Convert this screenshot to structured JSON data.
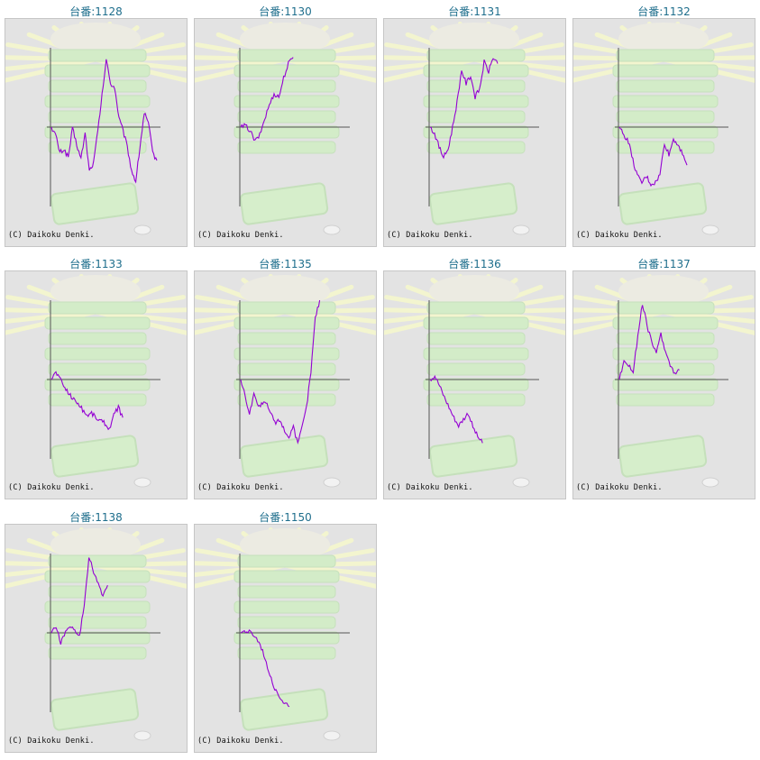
{
  "copyright": "(C) Daikoku Denki.",
  "colors": {
    "title": "#1e6e8c",
    "line": "#9400d3",
    "axis": "#555555",
    "panel_bg": "#e3e3e3",
    "decor_green": "#d3ecc8",
    "decor_rays": "#f3f5cf"
  },
  "chart_data": [
    {
      "type": "line",
      "title": "台番:1128",
      "series": [
        {
          "values": [
            0.0,
            -0.1,
            -0.32,
            -0.28,
            -0.38,
            -0.02,
            -0.22,
            -0.4,
            -0.08,
            -0.55,
            -0.45,
            -0.05,
            0.4,
            0.85,
            0.55,
            0.5,
            0.12,
            -0.05,
            -0.25,
            -0.55,
            -0.68,
            -0.25,
            0.18,
            0.05,
            -0.32,
            -0.42
          ]
        }
      ]
    },
    {
      "type": "line",
      "title": "台番:1130",
      "series": [
        {
          "values": [
            0.0,
            0.02,
            -0.05,
            -0.18,
            -0.1,
            0.1,
            0.28,
            0.42,
            0.38,
            0.62,
            0.8,
            0.88
          ]
        }
      ]
    },
    {
      "type": "line",
      "title": "台番:1131",
      "series": [
        {
          "values": [
            0.0,
            -0.08,
            -0.25,
            -0.38,
            -0.28,
            0.0,
            0.32,
            0.72,
            0.55,
            0.65,
            0.38,
            0.48,
            0.82,
            0.7,
            0.88,
            0.8
          ]
        }
      ]
    },
    {
      "type": "line",
      "title": "台番:1132",
      "series": [
        {
          "values": [
            0.0,
            -0.1,
            -0.18,
            -0.42,
            -0.62,
            -0.7,
            -0.62,
            -0.72,
            -0.7,
            -0.6,
            -0.2,
            -0.35,
            -0.15,
            -0.22,
            -0.32,
            -0.48
          ]
        }
      ]
    },
    {
      "type": "line",
      "title": "台番:1133",
      "series": [
        {
          "values": [
            0.0,
            0.1,
            0.0,
            -0.1,
            -0.18,
            -0.25,
            -0.3,
            -0.38,
            -0.45,
            -0.42,
            -0.48,
            -0.52,
            -0.55,
            -0.62,
            -0.45,
            -0.35,
            -0.48
          ]
        }
      ]
    },
    {
      "type": "line",
      "title": "台番:1135",
      "series": [
        {
          "values": [
            0.0,
            -0.2,
            -0.45,
            -0.15,
            -0.35,
            -0.3,
            -0.32,
            -0.45,
            -0.55,
            -0.5,
            -0.65,
            -0.72,
            -0.58,
            -0.82,
            -0.6,
            -0.35,
            0.1,
            0.78,
            1.0
          ]
        }
      ]
    },
    {
      "type": "line",
      "title": "台番:1136",
      "series": [
        {
          "values": [
            0.0,
            0.05,
            -0.08,
            -0.22,
            -0.35,
            -0.48,
            -0.58,
            -0.5,
            -0.42,
            -0.6,
            -0.72,
            -0.8
          ]
        }
      ]
    },
    {
      "type": "line",
      "title": "台番:1137",
      "series": [
        {
          "values": [
            0.0,
            0.25,
            0.18,
            0.1,
            0.55,
            0.95,
            0.68,
            0.48,
            0.32,
            0.58,
            0.35,
            0.18,
            0.08,
            0.12
          ]
        }
      ]
    },
    {
      "type": "line",
      "title": "台番:1138",
      "series": [
        {
          "values": [
            0.0,
            0.08,
            -0.12,
            0.0,
            0.1,
            0.02,
            -0.05,
            0.35,
            0.95,
            0.78,
            0.62,
            0.45,
            0.6
          ]
        }
      ]
    },
    {
      "type": "line",
      "title": "台番:1150",
      "series": [
        {
          "values": [
            0.0,
            0.02,
            0.0,
            -0.05,
            -0.15,
            -0.32,
            -0.52,
            -0.7,
            -0.8,
            -0.88,
            -0.93
          ]
        }
      ]
    }
  ]
}
